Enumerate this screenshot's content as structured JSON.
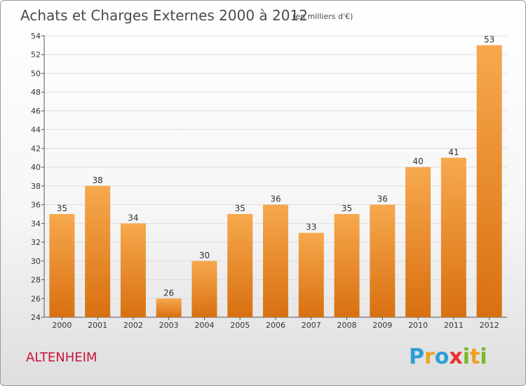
{
  "chart_data": {
    "type": "bar",
    "title": "Achats et Charges Externes 2000 à 2012",
    "subtitle": "(en milliers d'€)",
    "categories": [
      "2000",
      "2001",
      "2002",
      "2003",
      "2004",
      "2005",
      "2006",
      "2007",
      "2008",
      "2009",
      "2010",
      "2011",
      "2012"
    ],
    "values": [
      35,
      38,
      34,
      26,
      30,
      35,
      36,
      33,
      35,
      36,
      40,
      41,
      53
    ],
    "ylim": [
      24,
      54
    ],
    "yticks": [
      24,
      26,
      28,
      30,
      32,
      34,
      36,
      38,
      40,
      42,
      44,
      46,
      48,
      50,
      52,
      54
    ],
    "grid": true,
    "bar_color_top": "#f7a84e",
    "bar_color_bottom": "#d87010"
  },
  "footer": {
    "town": "ALTENHEIM",
    "logo_letters": [
      "P",
      "r",
      "o",
      "x",
      "i",
      "t",
      "i"
    ],
    "logo_colors": [
      "#2aa0d8",
      "#f0a020",
      "#2aa0d8",
      "#e83030",
      "#7ab828",
      "#f0a020",
      "#7ab828"
    ]
  }
}
